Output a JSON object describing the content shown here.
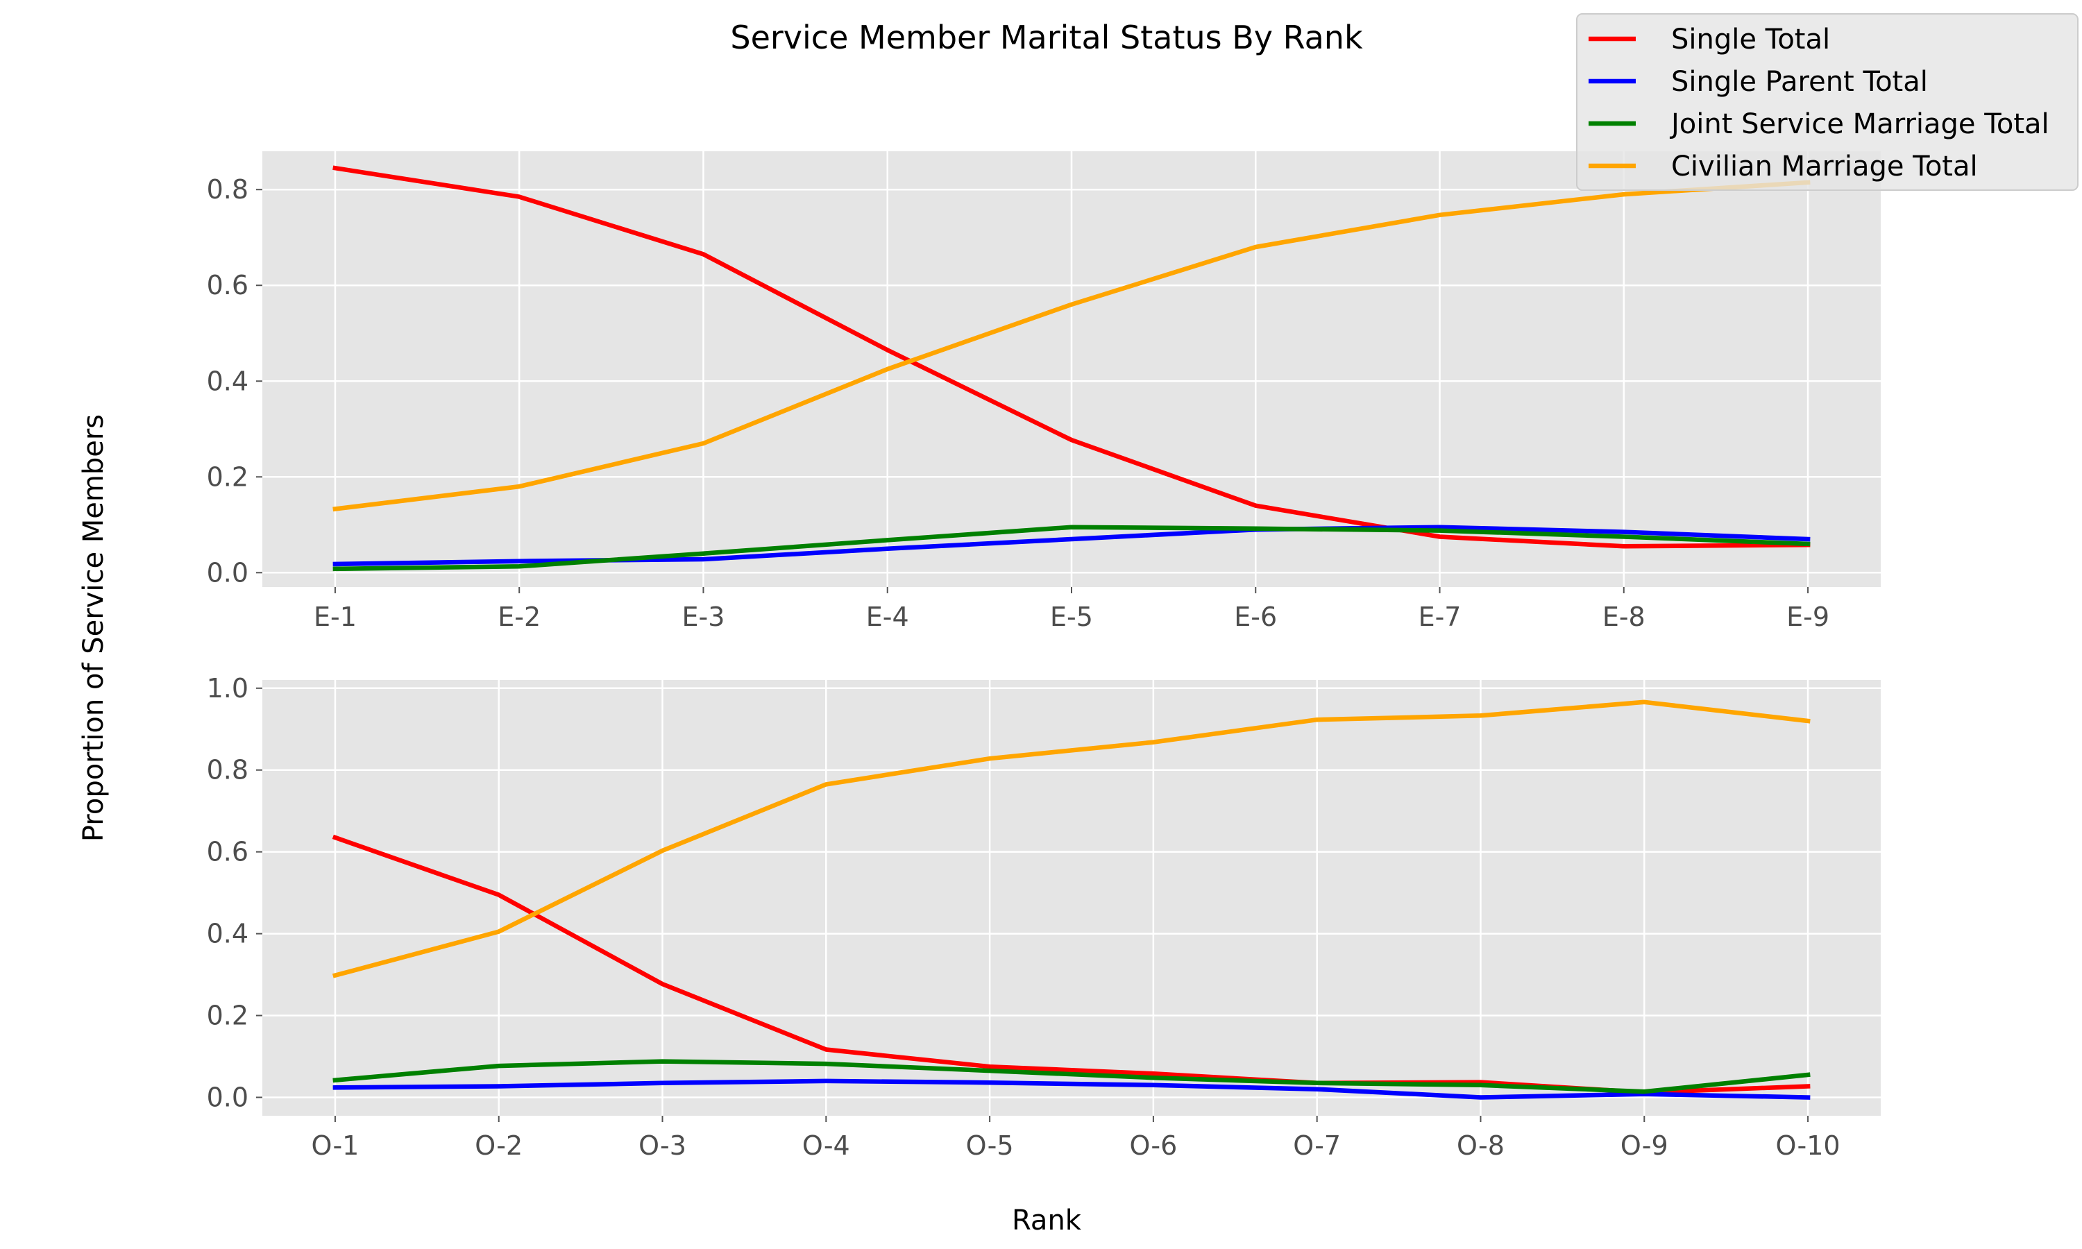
{
  "figure": {
    "title": "Service Member Marital Status By Rank",
    "xlabel": "Rank",
    "ylabel": "Proportion of Service Members"
  },
  "legend": {
    "placement": "top-right",
    "items": [
      {
        "label": "Single Total",
        "color": "#ff0000"
      },
      {
        "label": "Single Parent Total",
        "color": "#0000ff"
      },
      {
        "label": "Joint Service Marriage Total",
        "color": "#008000"
      },
      {
        "label": "Civilian Marriage Total",
        "color": "#ffa500"
      }
    ]
  },
  "chart_data": [
    {
      "type": "line",
      "categories": [
        "E-1",
        "E-2",
        "E-3",
        "E-4",
        "E-5",
        "E-6",
        "E-7",
        "E-8",
        "E-9"
      ],
      "ylim": [
        -0.03,
        0.88
      ],
      "yticks": [
        0.0,
        0.2,
        0.4,
        0.6,
        0.8
      ],
      "ytick_labels": [
        "0.0",
        "0.2",
        "0.4",
        "0.6",
        "0.8"
      ],
      "grid": true,
      "series": [
        {
          "name": "Single Total",
          "color": "#ff0000",
          "values": [
            0.845,
            0.785,
            0.665,
            0.465,
            0.277,
            0.14,
            0.075,
            0.055,
            0.058
          ]
        },
        {
          "name": "Single Parent Total",
          "color": "#0000ff",
          "values": [
            0.018,
            0.024,
            0.028,
            0.05,
            0.07,
            0.09,
            0.095,
            0.085,
            0.07
          ]
        },
        {
          "name": "Joint Service Marriage Total",
          "color": "#008000",
          "values": [
            0.008,
            0.013,
            0.04,
            0.068,
            0.095,
            0.092,
            0.088,
            0.075,
            0.06
          ]
        },
        {
          "name": "Civilian Marriage Total",
          "color": "#ffa500",
          "values": [
            0.133,
            0.18,
            0.27,
            0.425,
            0.56,
            0.68,
            0.747,
            0.79,
            0.815
          ]
        }
      ]
    },
    {
      "type": "line",
      "categories": [
        "O-1",
        "O-2",
        "O-3",
        "O-4",
        "O-5",
        "O-6",
        "O-7",
        "O-8",
        "O-9",
        "O-10"
      ],
      "ylim": [
        -0.045,
        1.02
      ],
      "yticks": [
        0.0,
        0.2,
        0.4,
        0.6,
        0.8,
        1.0
      ],
      "ytick_labels": [
        "0.0",
        "0.2",
        "0.4",
        "0.6",
        "0.8",
        "1.0"
      ],
      "grid": true,
      "series": [
        {
          "name": "Single Total",
          "color": "#ff0000",
          "values": [
            0.635,
            0.495,
            0.277,
            0.117,
            0.075,
            0.058,
            0.035,
            0.037,
            0.012,
            0.027
          ]
        },
        {
          "name": "Single Parent Total",
          "color": "#0000ff",
          "values": [
            0.024,
            0.027,
            0.035,
            0.04,
            0.036,
            0.03,
            0.02,
            0.0,
            0.008,
            0.0
          ]
        },
        {
          "name": "Joint Service Marriage Total",
          "color": "#008000",
          "values": [
            0.042,
            0.077,
            0.088,
            0.082,
            0.065,
            0.048,
            0.035,
            0.03,
            0.014,
            0.055
          ]
        },
        {
          "name": "Civilian Marriage Total",
          "color": "#ffa500",
          "values": [
            0.298,
            0.405,
            0.603,
            0.765,
            0.828,
            0.868,
            0.923,
            0.933,
            0.966,
            0.92
          ]
        }
      ]
    }
  ]
}
